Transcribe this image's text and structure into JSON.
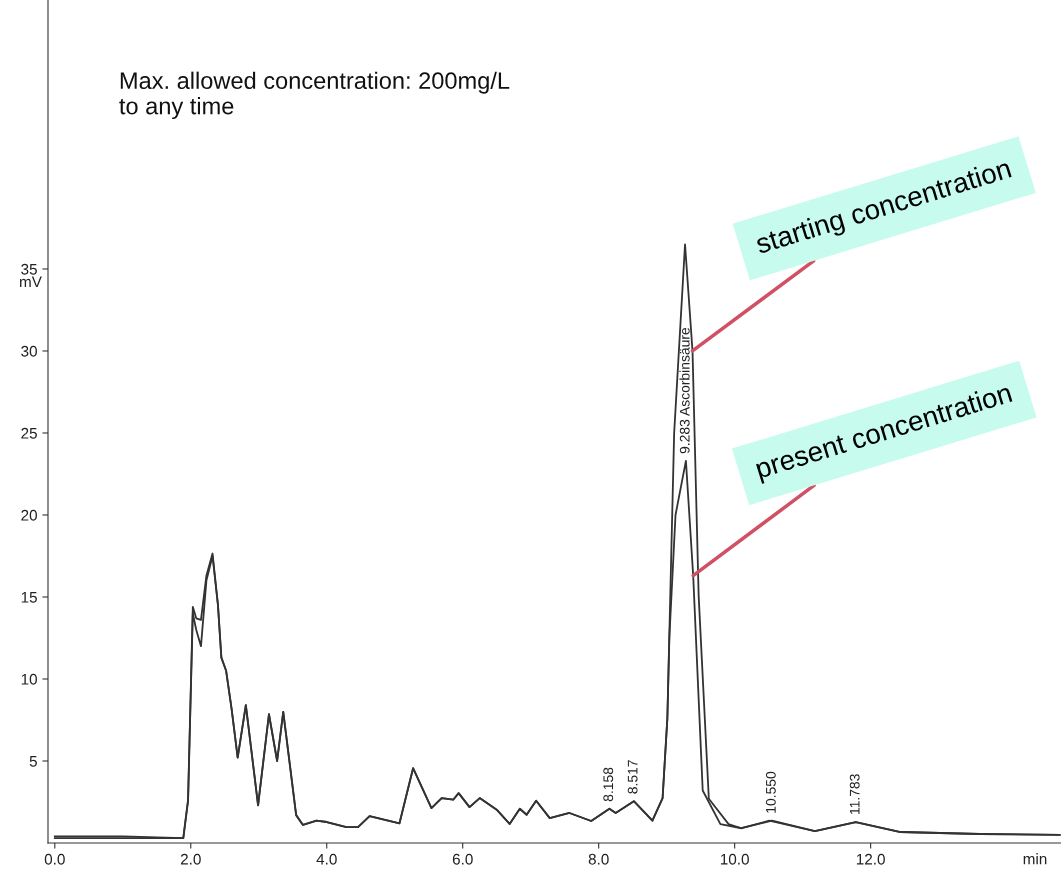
{
  "chart_data": {
    "type": "line",
    "xlabel": "min",
    "ylabel": "mV",
    "xlim": [
      -0.1,
      14.8
    ],
    "ylim": [
      0,
      51.4
    ],
    "xticks": [
      {
        "value": 0,
        "label": "0.0"
      },
      {
        "value": 2,
        "label": "2.0"
      },
      {
        "value": 4,
        "label": "4.0"
      },
      {
        "value": 6,
        "label": "6.0"
      },
      {
        "value": 8,
        "label": "8.0"
      },
      {
        "value": 10,
        "label": "10.0"
      },
      {
        "value": 12,
        "label": "12.0"
      }
    ],
    "yticks": [
      5,
      10,
      15,
      20,
      25,
      30,
      35
    ],
    "grid": false,
    "legend": false,
    "marker": "none",
    "line_style": "solid",
    "series": [
      {
        "color": "#333333",
        "x": [
          0,
          1.0,
          1.89,
          1.96,
          2.03,
          2.08,
          2.15,
          2.23,
          2.32,
          2.4,
          2.45,
          2.52,
          2.6,
          2.69,
          2.81,
          2.99,
          3.15,
          3.27,
          3.36,
          3.55,
          3.65,
          3.85,
          4.0,
          4.29,
          4.46,
          4.63,
          5.07,
          5.27,
          5.54,
          5.69,
          5.86,
          5.94,
          6.1,
          6.25,
          6.5,
          6.69,
          6.84,
          6.94,
          7.08,
          7.28,
          7.57,
          7.89,
          8.158,
          8.25,
          8.517,
          8.79,
          8.94,
          9.01,
          9.11,
          9.27,
          9.38,
          9.47,
          9.62,
          9.91,
          10.1,
          10.55,
          11.18,
          11.783,
          12.44,
          13.6,
          14.78
        ],
        "values": [
          0.4,
          0.4,
          0.3,
          2.6,
          14.4,
          13.7,
          13.6,
          16.3,
          17.65,
          14.5,
          11.3,
          10.5,
          8.2,
          5.2,
          8.4,
          2.3,
          7.85,
          5.0,
          8.0,
          1.7,
          1.1,
          1.36,
          1.28,
          0.97,
          0.97,
          1.64,
          1.2,
          4.56,
          2.13,
          2.74,
          2.64,
          3.04,
          2.19,
          2.74,
          2.03,
          1.16,
          2.09,
          1.72,
          2.58,
          1.52,
          1.83,
          1.34,
          2.09,
          1.83,
          2.55,
          1.36,
          2.74,
          7.6,
          25.0,
          36.5,
          30.0,
          15.1,
          2.7,
          1.15,
          0.9,
          1.36,
          0.73,
          1.28,
          0.67,
          0.55,
          0.5
        ]
      },
      {
        "color": "#333333",
        "x": [
          0,
          1.0,
          1.89,
          1.96,
          2.03,
          2.08,
          2.15,
          2.23,
          2.32,
          2.4,
          2.45,
          2.52,
          2.6,
          2.69,
          2.81,
          2.99,
          3.15,
          3.27,
          3.36,
          3.55,
          3.65,
          3.85,
          4.0,
          4.29,
          4.46,
          4.63,
          5.07,
          5.27,
          5.54,
          5.69,
          5.86,
          5.94,
          6.1,
          6.25,
          6.5,
          6.69,
          6.84,
          6.94,
          7.08,
          7.28,
          7.57,
          7.89,
          8.158,
          8.25,
          8.517,
          8.79,
          8.94,
          9.01,
          9.04,
          9.13,
          9.283,
          9.39,
          9.53,
          9.79,
          10.1,
          10.51,
          11.18,
          11.78,
          12.44,
          13.6,
          14.78
        ],
        "values": [
          0.3,
          0.3,
          0.3,
          2.6,
          14.0,
          13.0,
          12.0,
          16.0,
          17.5,
          14.5,
          11.3,
          10.5,
          8.2,
          5.2,
          8.4,
          2.3,
          7.85,
          5.0,
          8.0,
          1.7,
          1.1,
          1.36,
          1.28,
          0.97,
          0.97,
          1.64,
          1.2,
          4.56,
          2.13,
          2.74,
          2.64,
          3.04,
          2.19,
          2.74,
          2.03,
          1.16,
          2.09,
          1.72,
          2.58,
          1.52,
          1.83,
          1.34,
          2.09,
          1.83,
          2.55,
          1.36,
          2.74,
          7.6,
          12.6,
          20.0,
          23.3,
          16.3,
          3.2,
          1.15,
          0.9,
          1.36,
          0.73,
          1.28,
          0.67,
          0.55,
          0.5
        ]
      }
    ],
    "annotations": [
      "Max. allowed concentration: 200mg/L\nto any time",
      {
        "text": "8.158",
        "x": 8.158,
        "y": 2.09
      },
      {
        "text": "8.517",
        "x": 8.517,
        "y": 2.55
      },
      {
        "text": "9.283 Ascorbinsäure",
        "x": 9.283,
        "y": 23.3
      },
      {
        "text": "10.550",
        "x": 10.55,
        "y": 1.36
      },
      {
        "text": "11.783",
        "x": 11.783,
        "y": 1.28
      },
      {
        "text": "starting concentration",
        "x": 9.38,
        "y": 30.0
      },
      {
        "text": "present concentration",
        "x": 9.39,
        "y": 16.3
      }
    ]
  }
}
